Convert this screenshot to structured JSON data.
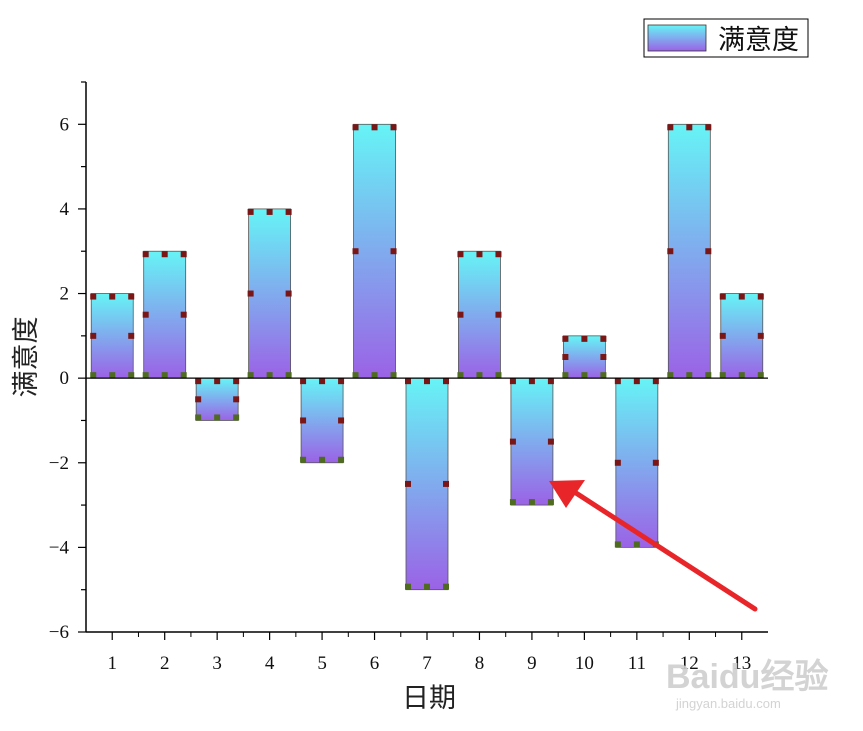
{
  "chart_data": {
    "type": "bar",
    "categories": [
      "1",
      "2",
      "3",
      "4",
      "5",
      "6",
      "7",
      "8",
      "9",
      "10",
      "11",
      "12",
      "13"
    ],
    "series": [
      {
        "name": "满意度",
        "values": [
          2,
          3,
          -1,
          4,
          -2,
          6,
          -5,
          3,
          -3,
          1,
          -4,
          6,
          2
        ]
      }
    ],
    "xlabel": "日期",
    "ylabel": "满意度",
    "ylim": [
      -6,
      7
    ],
    "yticks": [
      -6,
      -4,
      -2,
      0,
      2,
      4,
      6
    ],
    "grid": false,
    "legend_position": "top-right",
    "annotation": "red arrow pointing at bar 9"
  },
  "colors": {
    "bar_top": "#66f4f6",
    "bar_bottom": "#9b62e6",
    "marker_red": "#7a1616",
    "marker_green": "#4e6b20",
    "arrow": "#e8262a",
    "axis": "#000000"
  },
  "watermark": {
    "brand": "Baidu经验",
    "url": "jingyan.baidu.com"
  }
}
